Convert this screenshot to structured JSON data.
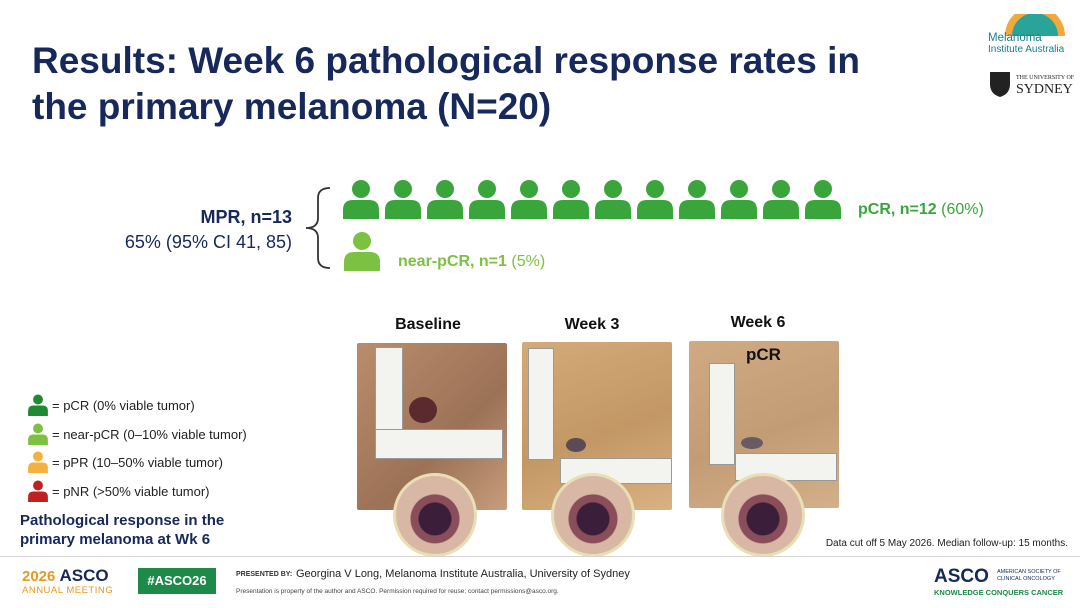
{
  "header": {
    "title_lines": [
      "Results: Week 6 pathological response rates in",
      "the primary melanoma (N=20)"
    ],
    "logo_mia": [
      "Melanoma",
      "Institute Australia"
    ],
    "logo_sydney": [
      "THE UNIVERSITY OF",
      "SYDNEY"
    ]
  },
  "summary": {
    "mpr_label": "MPR, n=13",
    "mpr_detail": "65% (95% CI 41, 85)",
    "pcr_label": "pCR, n=12",
    "pcr_pct": "(60%)",
    "near_pcr_label": "near-pCR, n=1",
    "near_pcr_pct": "(5%)",
    "icon_color": "#3aa53a"
  },
  "photos": [
    {
      "label": "Baseline"
    },
    {
      "label": "Week 3"
    },
    {
      "label": "Week 6",
      "overlay": "pCR"
    }
  ],
  "legend": {
    "items": [
      {
        "text": "= pCR (0% viable tumor)",
        "color": "#1f8a2f"
      },
      {
        "text": "= near-pCR (0–10% viable tumor)",
        "color": "#7cc142"
      },
      {
        "text": "= pPR (10–50% viable tumor)",
        "color": "#f4b13f"
      },
      {
        "text": "= pNR (>50% viable tumor)",
        "color": "#c0201f"
      }
    ],
    "caption_lines": [
      "Pathological response in the",
      "primary melanoma at Wk 6"
    ]
  },
  "footnote": "Data cut off 5 May 2026. Median follow-up: 15 months.",
  "footer": {
    "year": "2026",
    "meeting": "ASCO",
    "meeting_sub": "ANNUAL MEETING",
    "hashtag": "#ASCO26",
    "presented_by": "PRESENTED BY:",
    "presenter": "Georgina V Long, Melanoma Institute Australia, University of Sydney",
    "notice": "Presentation is property of the author and ASCO. Permission required for reuse; contact permissions@asco.org.",
    "asco": "ASCO",
    "asco_sub": [
      "AMERICAN SOCIETY OF",
      "CLINICAL ONCOLOGY"
    ],
    "tagline": "KNOWLEDGE CONQUERS CANCER"
  }
}
